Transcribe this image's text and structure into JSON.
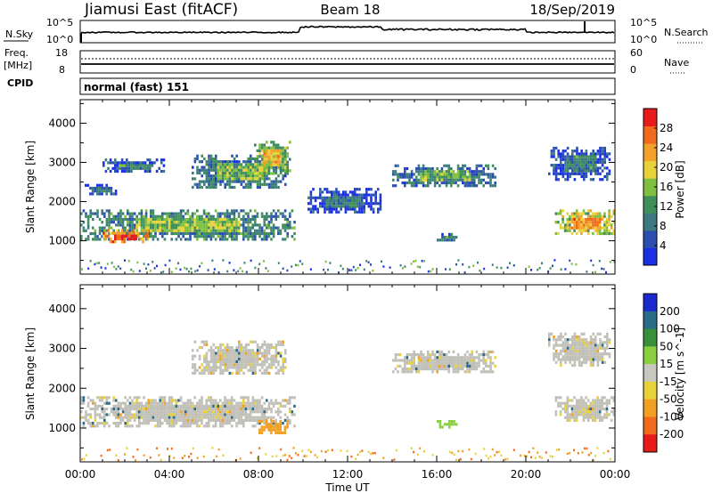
{
  "header": {
    "station": "Jiamusi East (fitACF)",
    "beam": "Beam 18",
    "date": "18/Sep/2019"
  },
  "noise_panel": {
    "left_label": "N.Sky",
    "right_label": "N.Search",
    "left_ticks": [
      "10^5",
      "10^0"
    ],
    "right_ticks": [
      "10^5",
      "10^0"
    ]
  },
  "freq_panel": {
    "left_label_line1": "Freq.",
    "left_label_line2": "[MHz]",
    "left_ticks": [
      "18",
      "8"
    ],
    "right_label": "Nave",
    "right_ticks": [
      "60",
      "0"
    ]
  },
  "cpid": {
    "label": "CPID",
    "value": "normal (fast) 151"
  },
  "colors": {
    "power_scale": [
      "#1a2ee6",
      "#2a4fb0",
      "#3c7a80",
      "#3f8f5a",
      "#7fbf3f",
      "#e8d23a",
      "#f2a22a",
      "#f26b1a",
      "#e81a1a"
    ],
    "velocity_scale": [
      "#1b2ad0",
      "#2a6b8a",
      "#3a8f3a",
      "#88d040",
      "#c8c8c0",
      "#e8d23a",
      "#f2a022",
      "#f26b1a",
      "#e81a1a"
    ],
    "ground_scatter": "#c0c0b8"
  },
  "chart_data": [
    {
      "type": "heatmap",
      "name": "Power panel",
      "xlabel": "Time UT",
      "ylabel": "Slant Range [km]",
      "x_ticks": [
        "00:00",
        "04:00",
        "08:00",
        "12:00",
        "16:00",
        "20:00",
        "00:00"
      ],
      "y_ticks": [
        1000,
        2000,
        3000,
        4000
      ],
      "ylim": [
        150,
        4600
      ],
      "colorbar": {
        "label": "Power [dB]",
        "ticks": [
          4,
          8,
          12,
          16,
          20,
          24,
          28
        ],
        "range": [
          0,
          32
        ]
      },
      "regions": [
        {
          "t0": 0.0,
          "t1": 9.6,
          "r0": 1050,
          "r1": 1800,
          "level": 12
        },
        {
          "t0": 1.0,
          "t1": 3.0,
          "r0": 1000,
          "r1": 1300,
          "level": 26
        },
        {
          "t0": 5.0,
          "t1": 9.2,
          "r0": 2350,
          "r1": 3200,
          "level": 10
        },
        {
          "t0": 7.8,
          "t1": 9.4,
          "r0": 2700,
          "r1": 3550,
          "level": 16
        },
        {
          "t0": 0.2,
          "t1": 1.6,
          "r0": 2200,
          "r1": 2450,
          "level": 6
        },
        {
          "t0": 1.0,
          "t1": 3.8,
          "r0": 2800,
          "r1": 3100,
          "level": 6
        },
        {
          "t0": 10.2,
          "t1": 13.5,
          "r0": 1700,
          "r1": 2350,
          "level": 5
        },
        {
          "t0": 14.0,
          "t1": 18.6,
          "r0": 2400,
          "r1": 2950,
          "level": 10
        },
        {
          "t0": 16.0,
          "t1": 16.9,
          "r0": 1050,
          "r1": 1200,
          "level": 8
        },
        {
          "t0": 21.3,
          "t1": 24.0,
          "r0": 1200,
          "r1": 1800,
          "level": 20
        },
        {
          "t0": 21.0,
          "t1": 23.8,
          "r0": 2600,
          "r1": 3400,
          "level": 6
        }
      ]
    },
    {
      "type": "heatmap",
      "name": "Velocity panel",
      "xlabel": "Time UT",
      "ylabel": "Slant Range [km]",
      "x_ticks": [
        "00:00",
        "04:00",
        "08:00",
        "12:00",
        "16:00",
        "20:00",
        "00:00"
      ],
      "y_ticks": [
        1000,
        2000,
        3000,
        4000
      ],
      "ylim": [
        150,
        4600
      ],
      "colorbar": {
        "label": "Velocity [m s^-1]",
        "ticks": [
          "200",
          "100",
          "50",
          "15",
          "-15",
          "-50",
          "-100",
          "-200"
        ]
      },
      "regions": [
        {
          "t0": 0.0,
          "t1": 9.6,
          "r0": 1050,
          "r1": 1800,
          "velocity": 0
        },
        {
          "t0": 5.0,
          "t1": 9.2,
          "r0": 2350,
          "r1": 3200,
          "velocity": 0
        },
        {
          "t0": 8.0,
          "t1": 9.3,
          "r0": 900,
          "r1": 1200,
          "velocity": -80
        },
        {
          "t0": 14.0,
          "t1": 18.6,
          "r0": 2400,
          "r1": 2950,
          "velocity": 0
        },
        {
          "t0": 16.0,
          "t1": 16.9,
          "r0": 1050,
          "r1": 1200,
          "velocity": 40
        },
        {
          "t0": 21.3,
          "t1": 24.0,
          "r0": 1200,
          "r1": 1800,
          "velocity": 0
        },
        {
          "t0": 21.0,
          "t1": 23.8,
          "r0": 2600,
          "r1": 3400,
          "velocity": 0
        }
      ]
    }
  ]
}
